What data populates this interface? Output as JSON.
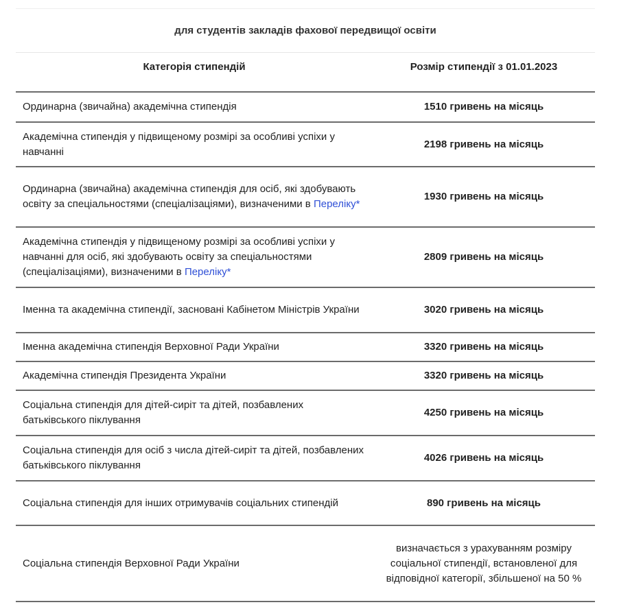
{
  "caption": "для студентів закладів фахової  передвищої освіти",
  "headers": {
    "category": "Категорія стипендій",
    "amount": "Розмір стипендії з 01.01.2023"
  },
  "rows": [
    {
      "category": "Ординарна (звичайна) академічна стипендія",
      "amount": "1510 гривень на місяць"
    },
    {
      "category": "Академічна стипендія  у підвищеному розмірі за особливі успіхи у навчанні",
      "amount": "2198 гривень на місяць"
    },
    {
      "category": "Ординарна (звичайна) академічна стипендія для осіб, які здобувають освіту за спеціальностями (спеціалізаціями), визначеними в ",
      "link": "Переліку*",
      "amount": "1930 гривень на місяць"
    },
    {
      "category": "Академічна стипендія  у підвищеному розмірі за особливі успіхи у навчанні для осіб, які здобувають освіту за спеціальностями (спеціалізаціями), визначеними в ",
      "link": "Переліку*",
      "amount": "2809 гривень на місяць"
    },
    {
      "category": "Іменна та академічна стипендії, засновані Кабінетом Міністрів України",
      "amount": "3020 гривень на місяць"
    },
    {
      "category": "Іменна академічна стипендія Верховної Ради України",
      "amount": "3320 гривень на місяць"
    },
    {
      "category": "Академічна стипендія Президента України",
      "amount": "3320 гривень на місяць"
    },
    {
      "category": "Соціальна стипендія для дітей-сиріт та дітей, позбавлених батьківського піклування",
      "amount": "4250 гривень на місяць"
    },
    {
      "category": "Соціальна стипендія для осіб з числа дітей-сиріт та дітей, позбавлених батьківського піклування",
      "amount": "4026 гривень на місяць"
    },
    {
      "category": "Соціальна стипендія для інших отримувачів соціальних стипендій",
      "amount": "890 гривень на місяць"
    },
    {
      "category": "Соціальна стипендія Верховної Ради України",
      "amount": "визначається з урахуванням розміру соціальної стипендії, встановленої для відповідної категорії, збільшеної на 50 %"
    }
  ],
  "colors": {
    "link": "#2f4fd6",
    "border": "#6b6b6b"
  }
}
